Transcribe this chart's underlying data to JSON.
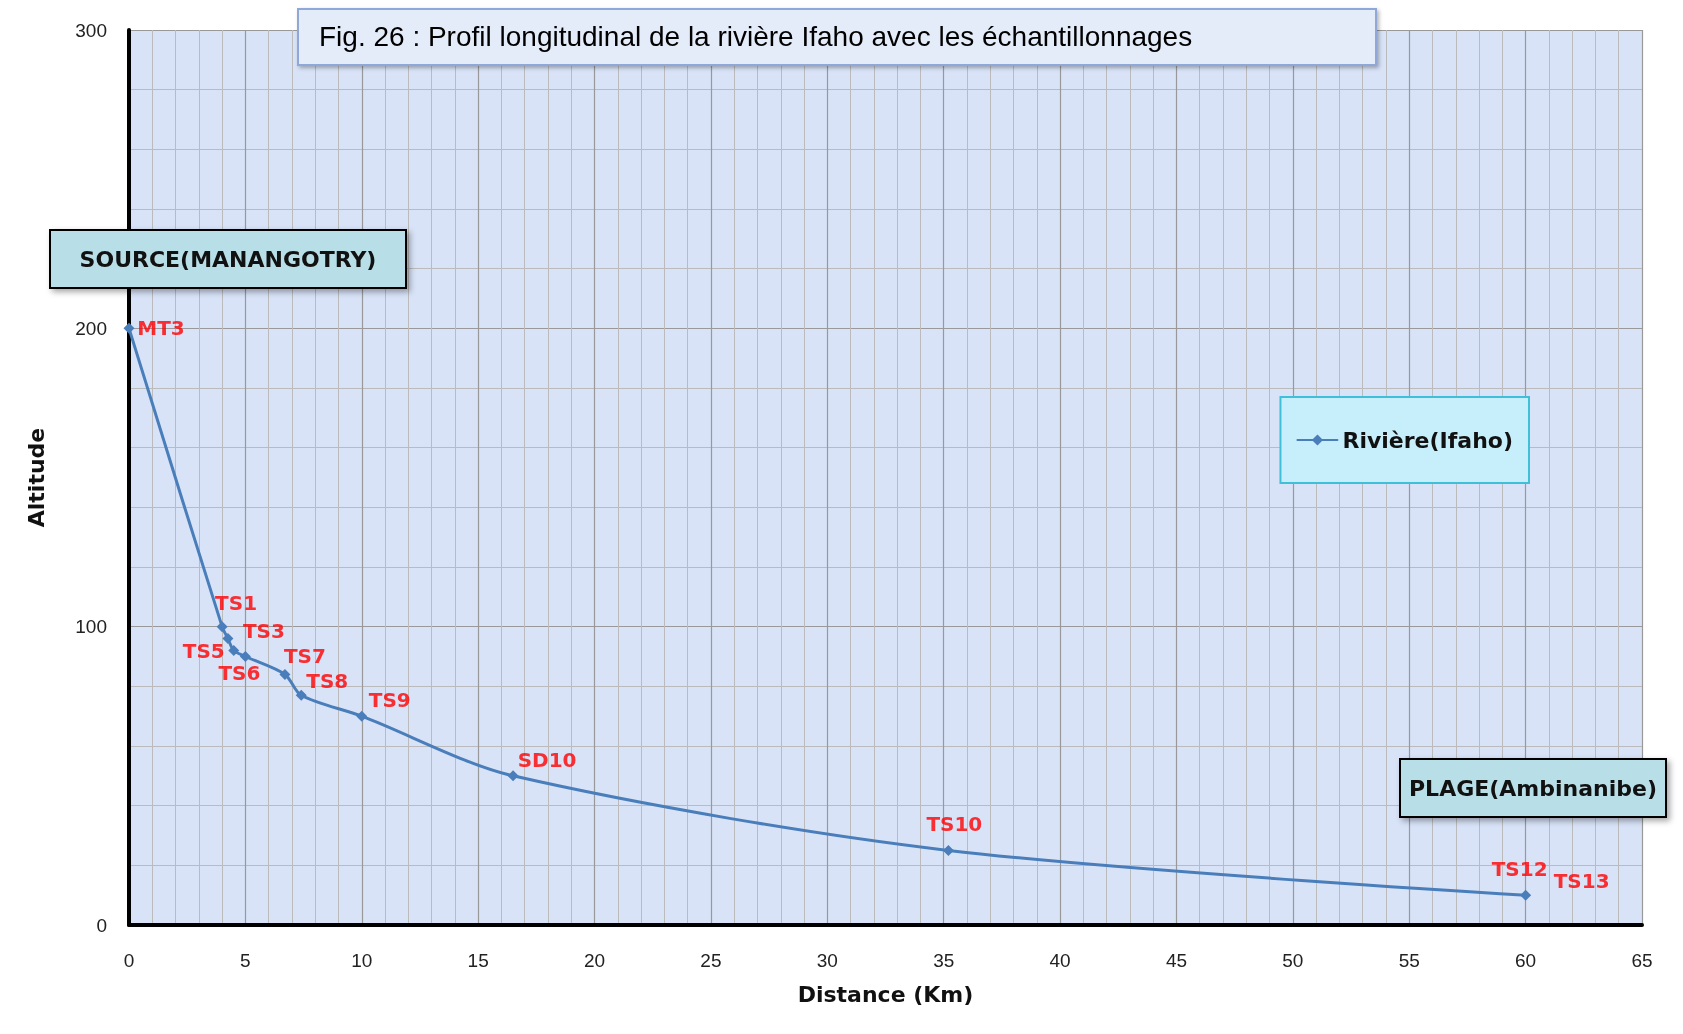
{
  "chart_data": {
    "type": "line",
    "title": "Fig. 26 : Profil longitudinal de la rivière Ifaho avec les échantillonnages",
    "xlabel": "Distance (Km)",
    "ylabel": "Altitude",
    "x": [
      0,
      4,
      4.25,
      4.5,
      5,
      6.7,
      7.4,
      10,
      16.5,
      35.2,
      60
    ],
    "series": [
      {
        "name": "Rivière(Ifaho)",
        "color": "#4a7ebb",
        "values": [
          200,
          100,
          96,
          92,
          90,
          84,
          77,
          70,
          50,
          25,
          10
        ]
      }
    ],
    "xlim": [
      0,
      65
    ],
    "xticks": [
      0,
      5,
      10,
      15,
      20,
      25,
      30,
      35,
      40,
      45,
      50,
      55,
      60,
      65
    ],
    "ylim": [
      0,
      300
    ],
    "yticks": [
      0,
      100,
      200,
      300
    ],
    "grid": true,
    "legend": "right",
    "marker": "diamond",
    "line_style": "solid",
    "annotations": [
      {
        "text": "MT3",
        "x": 0,
        "y": 200
      },
      {
        "text": "TS1",
        "x": 4,
        "y": 100
      },
      {
        "text": "TS3",
        "x": 4.25,
        "y": 96
      },
      {
        "text": "TS5",
        "x": 4.5,
        "y": 92
      },
      {
        "text": "TS6",
        "x": 5,
        "y": 90
      },
      {
        "text": "TS7",
        "x": 6.7,
        "y": 84
      },
      {
        "text": "TS8",
        "x": 7.4,
        "y": 77
      },
      {
        "text": "TS9",
        "x": 10,
        "y": 70
      },
      {
        "text": "SD10",
        "x": 16.5,
        "y": 50
      },
      {
        "text": "TS10",
        "x": 35.2,
        "y": 25
      },
      {
        "text": "TS12",
        "x": 60,
        "y": 10
      },
      {
        "text": "TS13",
        "x": 60,
        "y": 10
      },
      "SOURCE(MANANGOTRY)",
      "PLAGE(Ambinanibe)"
    ]
  }
}
